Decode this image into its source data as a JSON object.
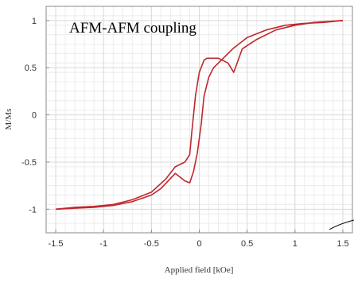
{
  "chart_data": {
    "type": "line",
    "title": "",
    "annotation": "AFM-AFM coupling",
    "xlabel": "Applied field [kOe]",
    "ylabel": "M/Ms",
    "xlim": [
      -1.6,
      1.6
    ],
    "ylim": [
      -1.25,
      1.15
    ],
    "x_ticks": [
      -1.5,
      -1,
      -0.5,
      0,
      0.5,
      1,
      1.5
    ],
    "x_tick_labels": [
      "-1.5",
      "-1",
      "-0.5",
      "0",
      "0.5",
      "1",
      "1.5"
    ],
    "y_ticks": [
      -1,
      -0.5,
      0,
      0.5,
      1
    ],
    "y_tick_labels": [
      "-1",
      "-0.5",
      "0",
      "0.5",
      "1"
    ],
    "grid": true,
    "series_color": "#c0282d",
    "series": [
      {
        "x": [
          -1.5,
          -1.3,
          -1.1,
          -0.9,
          -0.7,
          -0.5,
          -0.35,
          -0.25,
          -0.15,
          -0.1,
          -0.08,
          -0.04,
          0.0,
          0.05,
          0.08,
          0.12,
          0.2,
          0.3,
          0.36,
          0.45,
          0.6,
          0.8,
          1.0,
          1.2,
          1.5
        ],
        "y": [
          -1.0,
          -0.98,
          -0.97,
          -0.95,
          -0.9,
          -0.82,
          -0.68,
          -0.55,
          -0.5,
          -0.42,
          -0.2,
          0.2,
          0.45,
          0.58,
          0.6,
          0.6,
          0.6,
          0.55,
          0.45,
          0.7,
          0.8,
          0.9,
          0.95,
          0.98,
          1.0
        ]
      },
      {
        "x": [
          1.5,
          1.3,
          1.1,
          0.9,
          0.7,
          0.5,
          0.35,
          0.2,
          0.15,
          0.1,
          0.05,
          0.02,
          -0.02,
          -0.06,
          -0.1,
          -0.15,
          -0.25,
          -0.4,
          -0.5,
          -0.7,
          -0.9,
          -1.1,
          -1.3,
          -1.5
        ],
        "y": [
          1.0,
          0.98,
          0.97,
          0.95,
          0.9,
          0.82,
          0.7,
          0.55,
          0.5,
          0.4,
          0.2,
          -0.1,
          -0.4,
          -0.6,
          -0.72,
          -0.7,
          -0.62,
          -0.78,
          -0.85,
          -0.92,
          -0.96,
          -0.98,
          -0.99,
          -1.0
        ]
      }
    ]
  }
}
